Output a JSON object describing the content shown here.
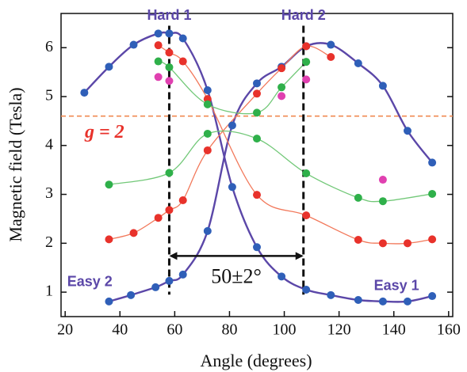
{
  "chart_data": {
    "type": "scatter",
    "x_label": "Angle (degrees)",
    "y_label": "Magnetic field (Tesla)",
    "xlim": [
      18.5,
      161.5
    ],
    "ylim": [
      0.5,
      6.7
    ],
    "xticks": [
      20,
      40,
      60,
      80,
      100,
      120,
      140,
      160
    ],
    "yticks": [
      1,
      2,
      3,
      4,
      5,
      6
    ],
    "series": [
      {
        "color": "#2f5fb8",
        "line_color": "#5b47a8",
        "line": true,
        "x": [
          27,
          36,
          45,
          54,
          58,
          63,
          72,
          81,
          90,
          99,
          108,
          117,
          127,
          136,
          145,
          154
        ],
        "values": [
          5.08,
          5.61,
          6.06,
          6.29,
          6.29,
          6.19,
          5.13,
          3.15,
          1.92,
          1.32,
          1.05,
          0.94,
          0.84,
          0.81,
          0.81,
          0.92
        ]
      },
      {
        "color": "#2f5fb8",
        "line_color": "#5b47a8",
        "line": true,
        "x": [
          36,
          44,
          53,
          58,
          63,
          72,
          81,
          90,
          99,
          108,
          117,
          127,
          136,
          145,
          154
        ],
        "values": [
          0.81,
          0.94,
          1.1,
          1.23,
          1.36,
          2.25,
          4.41,
          5.27,
          5.61,
          6.03,
          6.06,
          5.68,
          5.22,
          4.3,
          3.65
        ]
      },
      {
        "color": "#e8322b",
        "line_color": "#f2785a",
        "line": true,
        "x": [
          36,
          45,
          54,
          58,
          63,
          72,
          90,
          99,
          108,
          117
        ],
        "values": [
          2.08,
          2.21,
          2.52,
          2.68,
          2.88,
          3.9,
          5.06,
          5.58,
          6.03,
          5.81
        ]
      },
      {
        "color": "#e8322b",
        "line_color": "#f2785a",
        "line": true,
        "x": [
          54,
          58,
          63,
          72,
          90,
          108,
          127,
          136,
          145,
          154
        ],
        "values": [
          6.05,
          5.9,
          5.72,
          4.95,
          2.99,
          2.57,
          2.07,
          2.0,
          2.0,
          2.08
        ]
      },
      {
        "color": "#2fb04a",
        "line_color": "#72c878",
        "line": true,
        "x": [
          36,
          58,
          72,
          90,
          108,
          127,
          136,
          154
        ],
        "values": [
          3.2,
          3.44,
          4.24,
          4.14,
          3.43,
          2.93,
          2.86,
          3.01
        ]
      },
      {
        "color": "#2fb04a",
        "line_color": "#72c878",
        "line": true,
        "x": [
          54,
          58,
          72,
          90,
          99,
          108
        ],
        "values": [
          5.72,
          5.6,
          4.84,
          4.67,
          5.19,
          5.71
        ]
      },
      {
        "color": "#e040b0",
        "line": false,
        "x": [
          54,
          58,
          99,
          108,
          136
        ],
        "values": [
          5.4,
          5.32,
          5.01,
          5.35,
          3.3
        ]
      }
    ],
    "hline": {
      "value": 4.6,
      "color": "#f08a50",
      "label": "g = 2",
      "label_color": "#e8322b"
    },
    "vlines": [
      58,
      107
    ],
    "span": {
      "y": 1.74,
      "label": "50±2°"
    },
    "annotations": [
      {
        "text": "Hard 1",
        "x": 58,
        "y": 6.65
      },
      {
        "text": "Hard 2",
        "x": 107,
        "y": 6.65
      },
      {
        "text": "Easy 2",
        "x": 29,
        "y": 1.2
      },
      {
        "text": "Easy 1",
        "x": 141,
        "y": 1.12
      }
    ]
  }
}
